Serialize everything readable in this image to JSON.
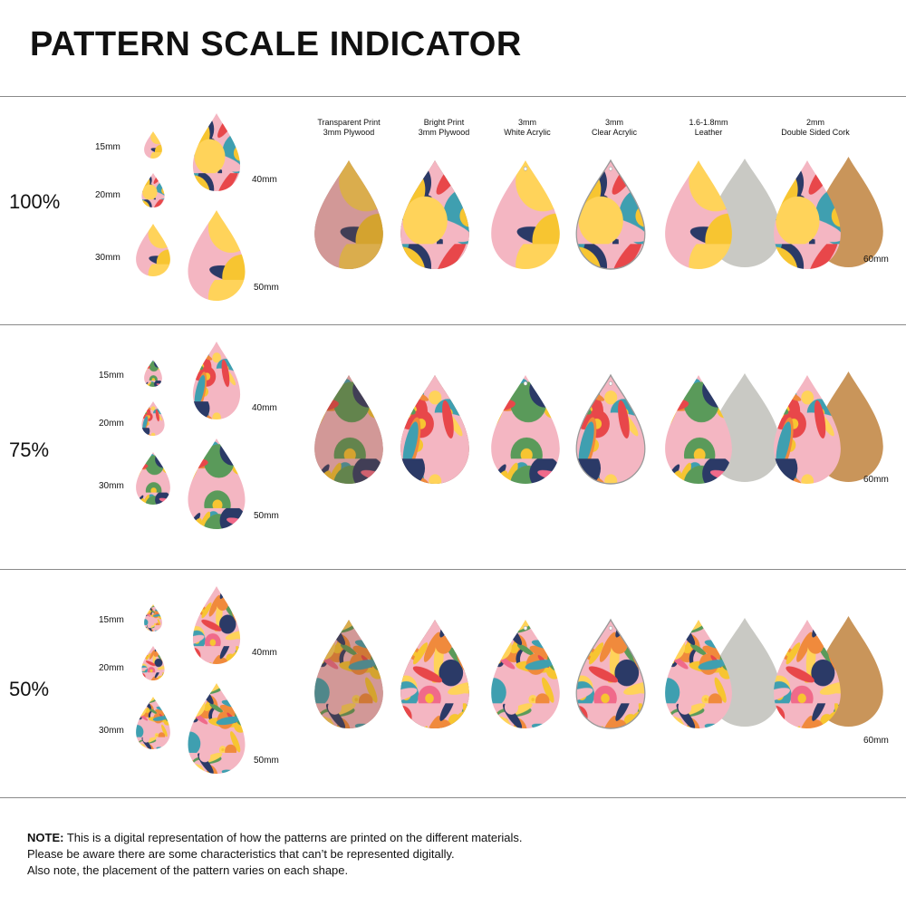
{
  "title": "PATTERN SCALE INDICATOR",
  "materials": [
    {
      "line1": "Transparent Print",
      "line2": "3mm Plywood"
    },
    {
      "line1": "Bright Print",
      "line2": "3mm Plywood"
    },
    {
      "line1": "3mm",
      "line2": "White Acrylic"
    },
    {
      "line1": "3mm",
      "line2": "Clear Acrylic"
    },
    {
      "line1": "1.6-1.8mm",
      "line2": "Leather"
    },
    {
      "line1": "2mm",
      "line2": "Double Sided Cork"
    }
  ],
  "rows": [
    {
      "scale": "100%",
      "size_labels": [
        "15mm",
        "20mm",
        "30mm",
        "40mm",
        "50mm"
      ],
      "material_size": "60mm"
    },
    {
      "scale": "75%",
      "size_labels": [
        "15mm",
        "20mm",
        "30mm",
        "40mm",
        "50mm"
      ],
      "material_size": "60mm"
    },
    {
      "scale": "50%",
      "size_labels": [
        "15mm",
        "20mm",
        "30mm",
        "40mm",
        "50mm"
      ],
      "material_size": "60mm"
    }
  ],
  "note": {
    "label": "NOTE:",
    "line1": " This is a digital representation of how the patterns are printed on the different materials.",
    "line2": "Please be aware there are some characteristics that can’t be represented digitally.",
    "line3": "Also note, the placement of the pattern varies on each shape."
  },
  "colors": {
    "pink": "#f4b6c2",
    "red": "#e8474a",
    "yellow": "#f7c531",
    "orange": "#f08a3c",
    "teal": "#3f9fb0",
    "navy": "#2b3a67",
    "green": "#5a9a5a",
    "leather": "#c9c9c4",
    "cork": "#c9955a",
    "wood": "#7a4a2a"
  }
}
